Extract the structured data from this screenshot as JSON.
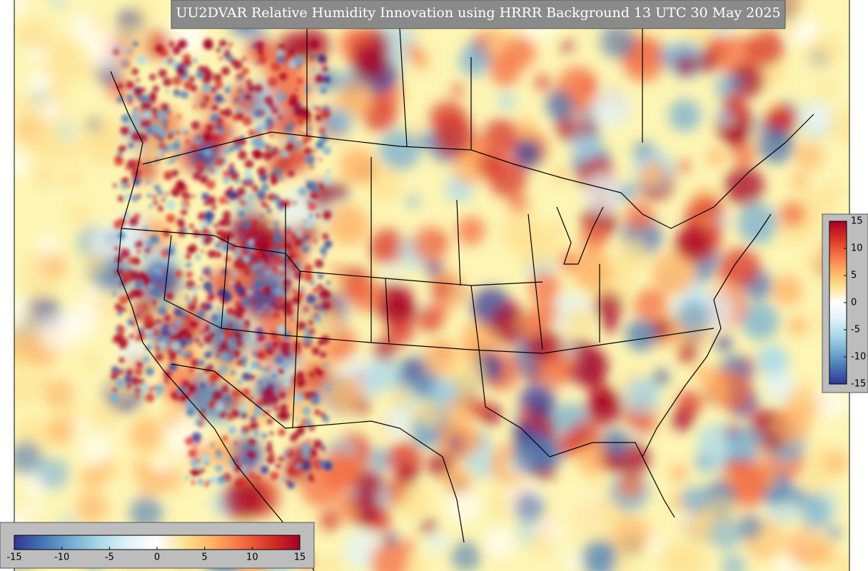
{
  "title": "UU2DVAR Relative Humidity Innovation using HRRR Background 13 UTC 30 May 2025",
  "colorbar": {
    "lim": [
      -15,
      15
    ],
    "ticks": [
      -15,
      -10,
      -5,
      0,
      5,
      10,
      15
    ],
    "colors": [
      "#313695",
      "#4575b4",
      "#74add1",
      "#abd9e9",
      "#e0f3f8",
      "#ffffff",
      "#fee090",
      "#fdae61",
      "#f46d43",
      "#d73027",
      "#a50026"
    ]
  }
}
